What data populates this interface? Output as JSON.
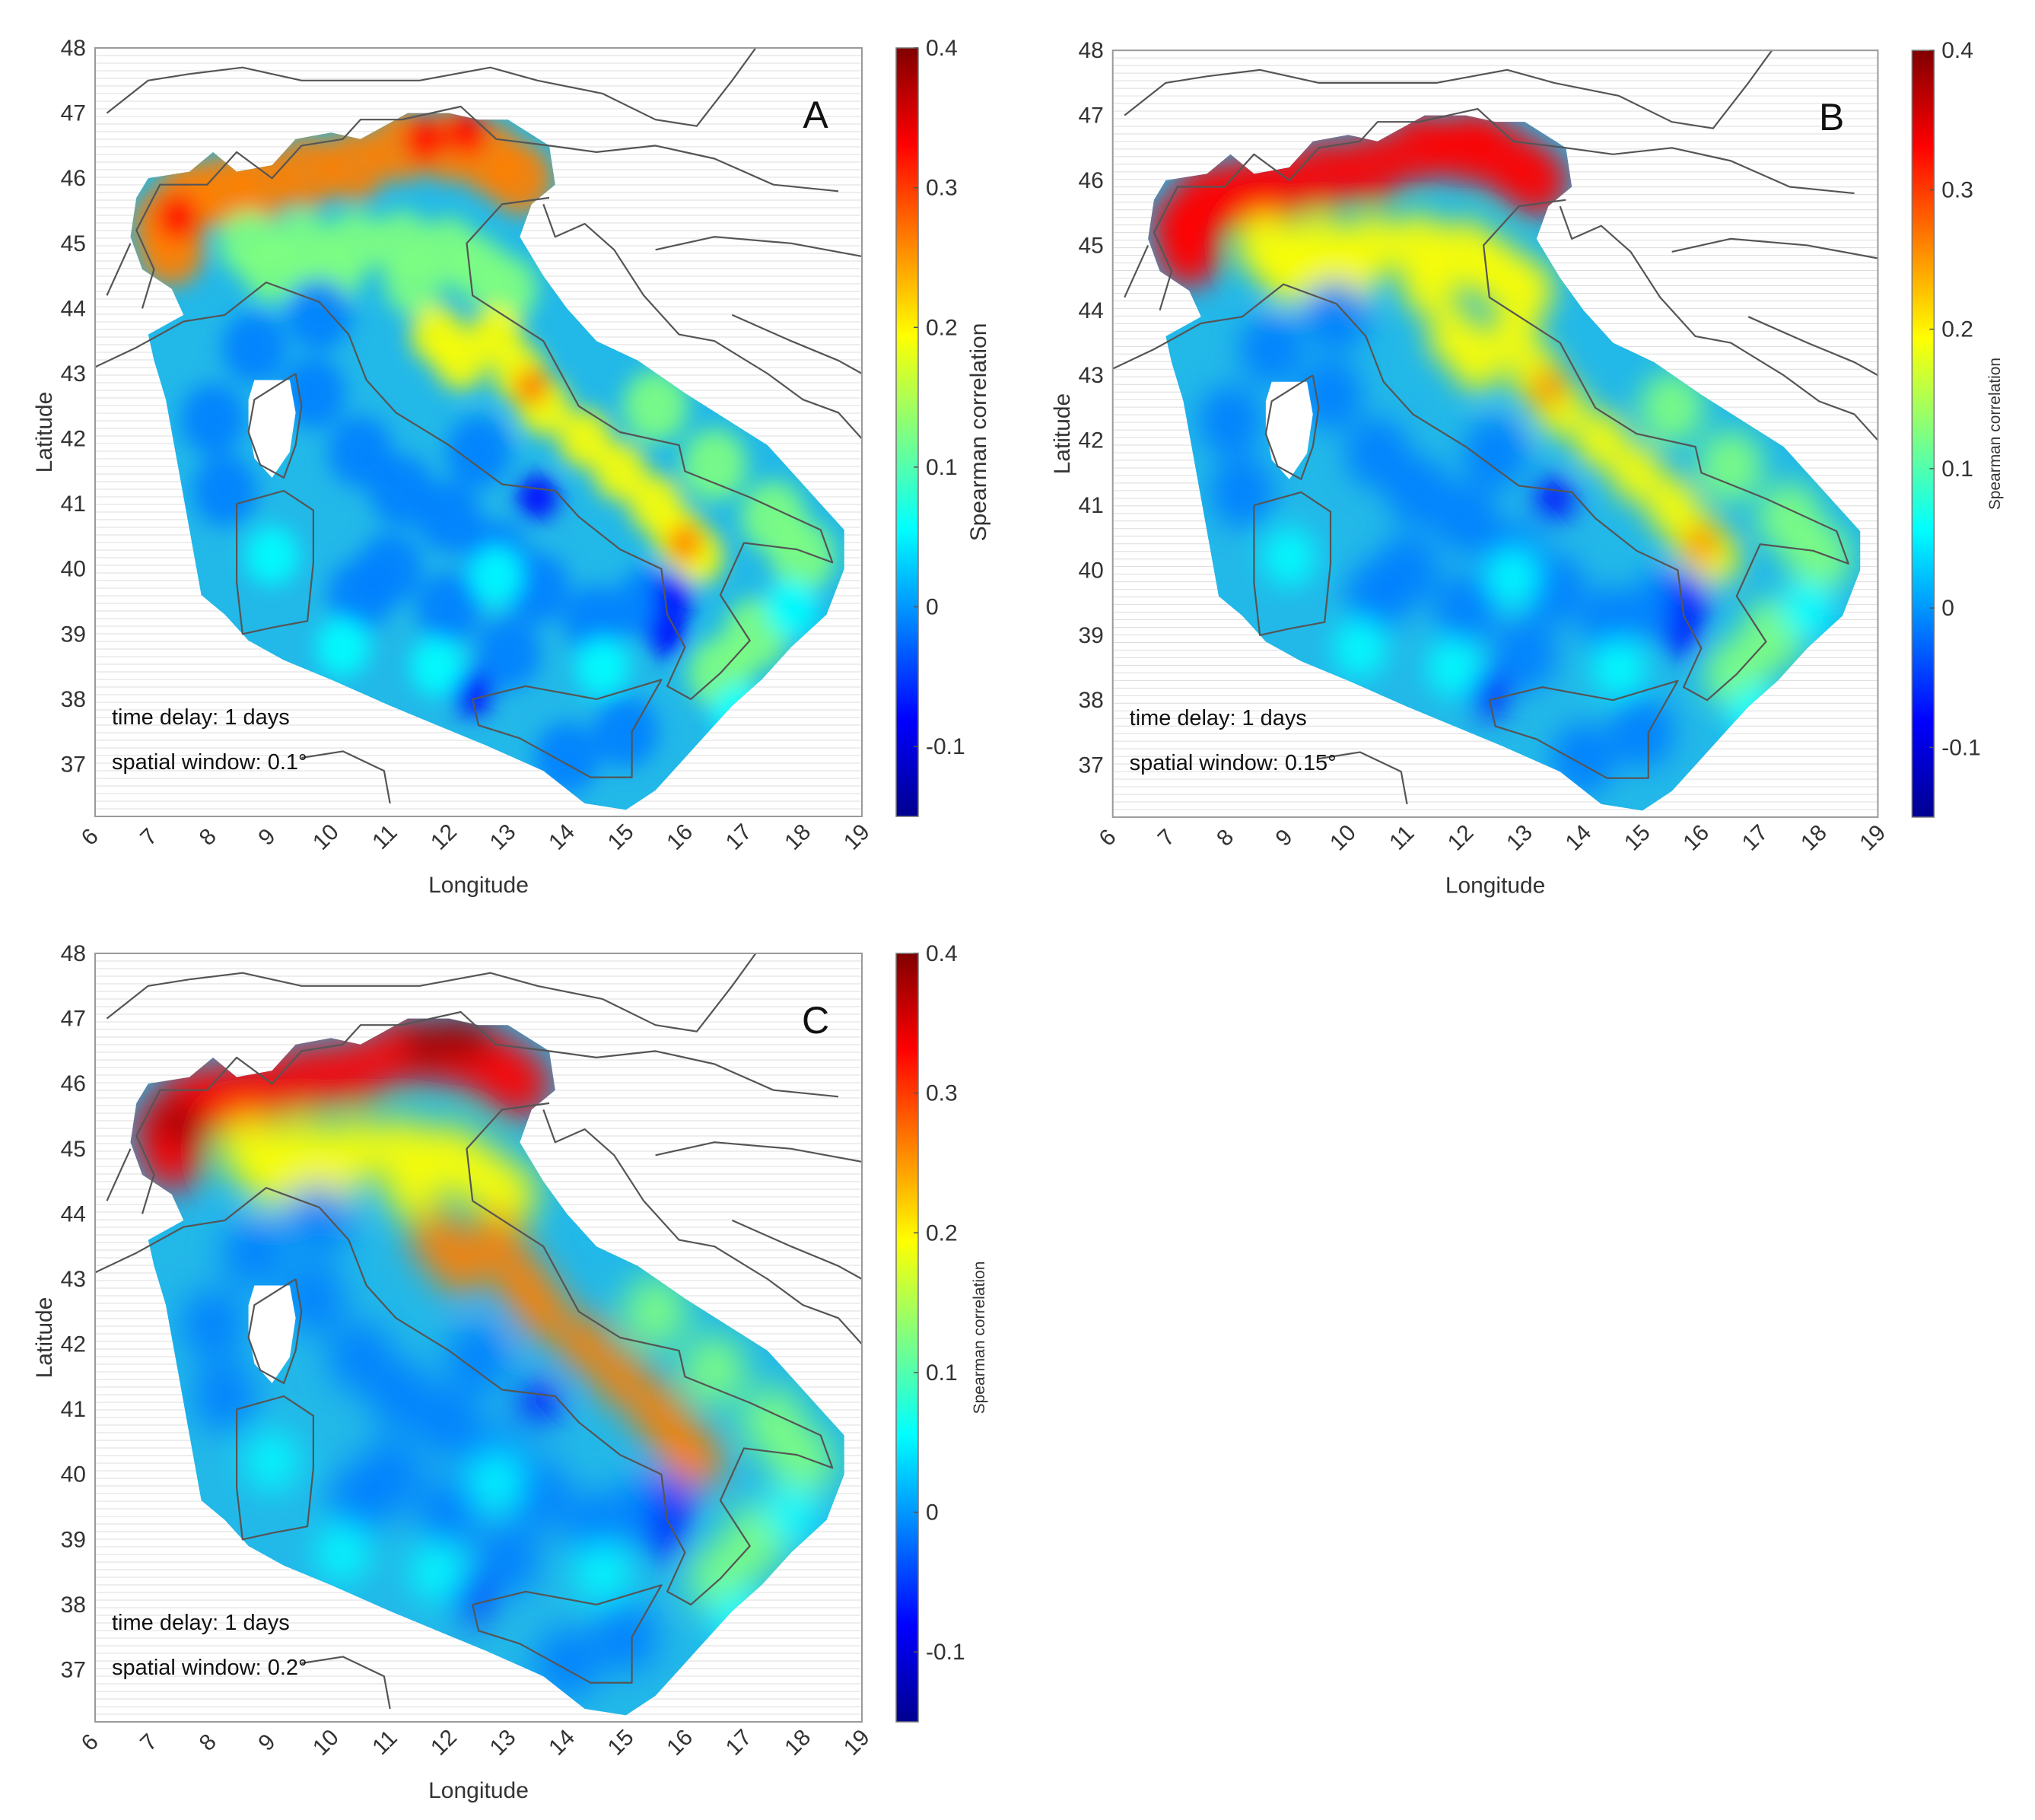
{
  "figure": {
    "xlabel": "Longitude",
    "ylabel": "Latitude",
    "x_ticks": [
      "6",
      "7",
      "8",
      "9",
      "10",
      "11",
      "12",
      "13",
      "14",
      "15",
      "16",
      "17",
      "18",
      "19"
    ],
    "y_ticks": [
      "48",
      "47",
      "46",
      "45",
      "44",
      "43",
      "42",
      "41",
      "40",
      "39",
      "38",
      "37"
    ],
    "colorbar_ticks": [
      "0.4",
      "0.3",
      "0.2",
      "0.1",
      "0",
      "-0.1"
    ],
    "colormap": [
      "#00008f",
      "#0000ff",
      "#0080ff",
      "#00ffff",
      "#80ff80",
      "#ffff00",
      "#ff8000",
      "#ff0000",
      "#800000"
    ]
  },
  "chart_data": [
    {
      "type": "heatmap",
      "panel_label": "A",
      "annotation_delay": "time delay: 1 days",
      "annotation_window": "spatial window: 0.1°",
      "colorbar_label": "Spearman correlation",
      "xlim": [
        6,
        19
      ],
      "ylim": [
        36.2,
        48
      ],
      "clim": [
        -0.15,
        0.4
      ],
      "x_ticks": [
        6,
        7,
        8,
        9,
        10,
        11,
        12,
        13,
        14,
        15,
        16,
        17,
        18,
        19
      ],
      "y_ticks": [
        37,
        38,
        39,
        40,
        41,
        42,
        43,
        44,
        45,
        46,
        47,
        48
      ],
      "colorbar_ticks": [
        -0.1,
        0,
        0.1,
        0.2,
        0.3,
        0.4
      ],
      "approx_values": {
        "north_alps": 0.33,
        "po_valley": 0.18,
        "apennines": 0.2,
        "tyrrhenian_sea": 0.02,
        "south_ionian": 0.06
      }
    },
    {
      "type": "heatmap",
      "panel_label": "B",
      "annotation_delay": "time delay: 1 days",
      "annotation_window": "spatial window: 0.15°",
      "colorbar_label": "Spearman correlation",
      "xlim": [
        6,
        19
      ],
      "ylim": [
        36.2,
        48
      ],
      "clim": [
        -0.15,
        0.4
      ],
      "x_ticks": [
        6,
        7,
        8,
        9,
        10,
        11,
        12,
        13,
        14,
        15,
        16,
        17,
        18,
        19
      ],
      "y_ticks": [
        37,
        38,
        39,
        40,
        41,
        42,
        43,
        44,
        45,
        46,
        47,
        48
      ],
      "colorbar_ticks": [
        -0.1,
        0,
        0.1,
        0.2,
        0.3,
        0.4
      ],
      "approx_values": {
        "north_alps": 0.35,
        "po_valley": 0.2,
        "apennines": 0.22,
        "tyrrhenian_sea": 0.01,
        "south_ionian": 0.05
      }
    },
    {
      "type": "heatmap",
      "panel_label": "C",
      "annotation_delay": "time delay: 1 days",
      "annotation_window": "spatial window: 0.2°",
      "colorbar_label": "Spearman correlation",
      "xlim": [
        6,
        19
      ],
      "ylim": [
        36.2,
        48
      ],
      "clim": [
        -0.15,
        0.4
      ],
      "x_ticks": [
        6,
        7,
        8,
        9,
        10,
        11,
        12,
        13,
        14,
        15,
        16,
        17,
        18,
        19
      ],
      "y_ticks": [
        37,
        38,
        39,
        40,
        41,
        42,
        43,
        44,
        45,
        46,
        47,
        48
      ],
      "colorbar_ticks": [
        -0.1,
        0,
        0.1,
        0.2,
        0.3,
        0.4
      ],
      "approx_values": {
        "north_alps": 0.37,
        "po_valley": 0.22,
        "apennines": 0.24,
        "tyrrhenian_sea": 0.0,
        "south_ionian": 0.04
      }
    }
  ]
}
